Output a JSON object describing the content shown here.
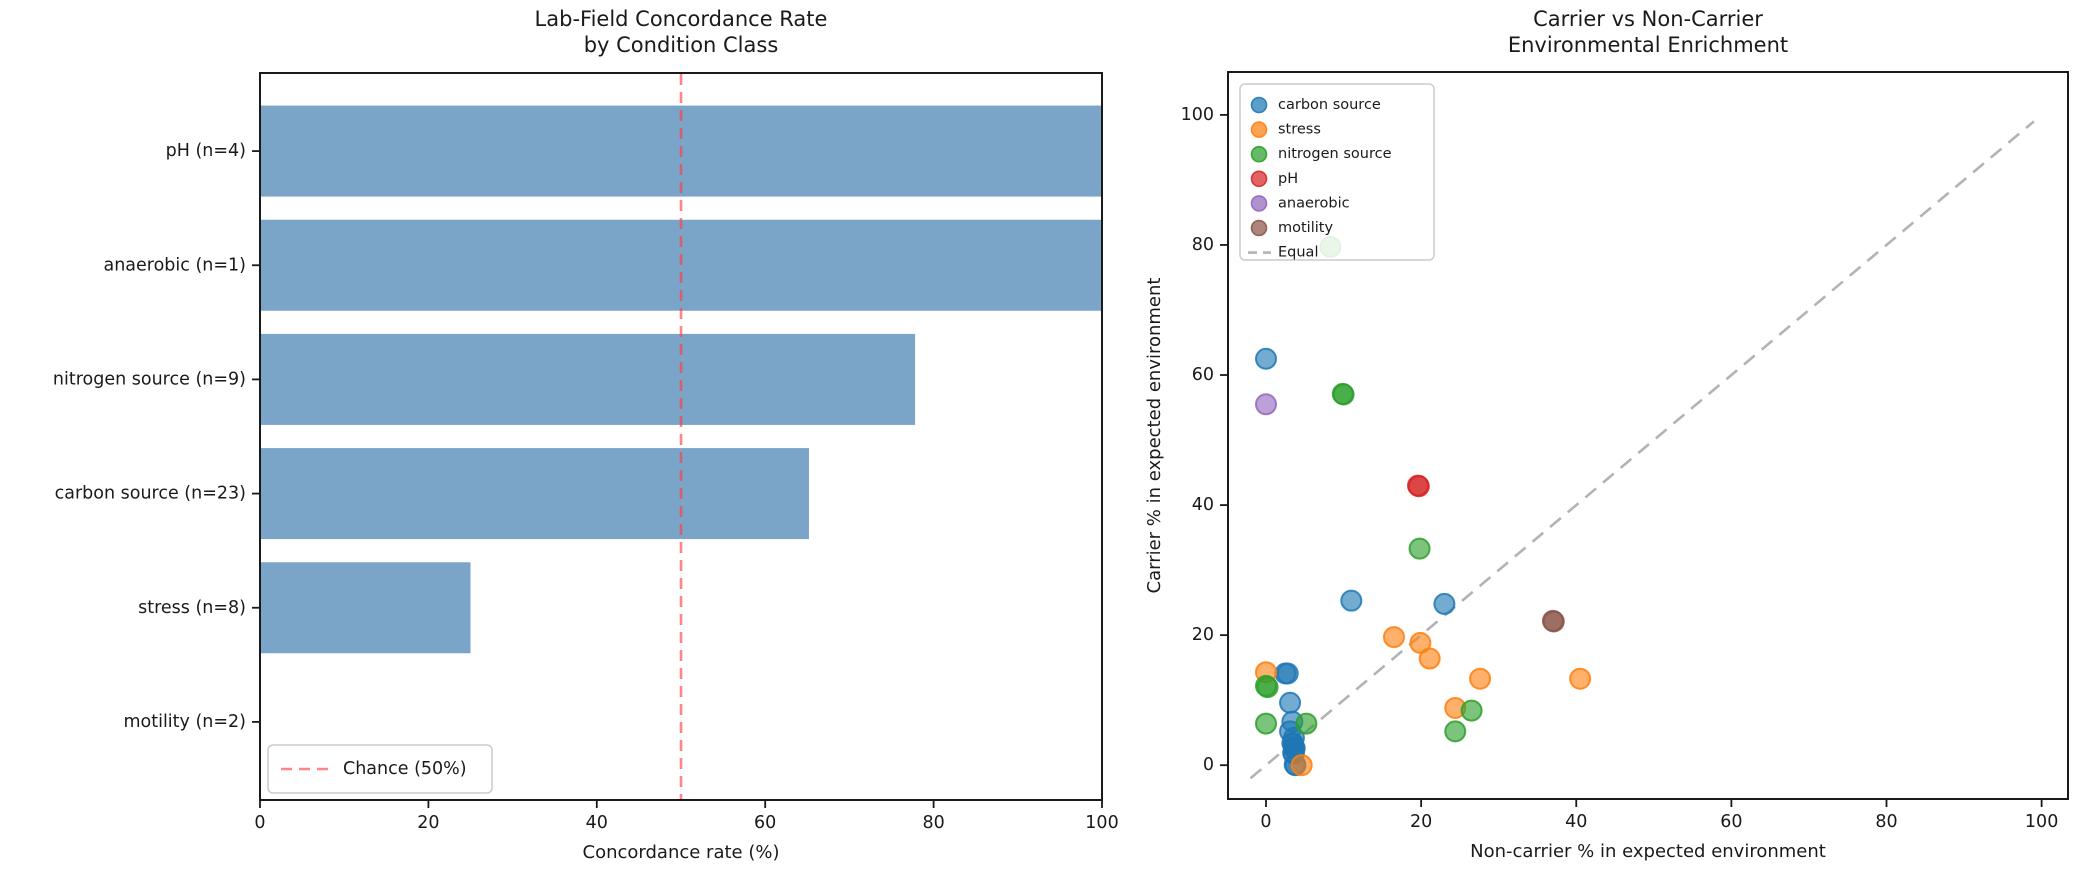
{
  "figure": {
    "background": "#ffffff"
  },
  "chart_data": [
    {
      "type": "bar",
      "orientation": "horizontal",
      "title_lines": [
        "Lab-Field Concordance Rate",
        "by Condition Class"
      ],
      "categories": [
        "pH (n=4)",
        "anaerobic (n=1)",
        "nitrogen source (n=9)",
        "carbon source (n=23)",
        "stress (n=8)",
        "motility (n=2)"
      ],
      "values": [
        100,
        100,
        77.8,
        65.2,
        25,
        0
      ],
      "xlabel": "Concordance rate (%)",
      "x_ticks": [
        0,
        20,
        40,
        60,
        80,
        100
      ],
      "xlim": [
        0,
        100
      ],
      "grid": false,
      "bar_color": "#4682b4",
      "reference_line": {
        "value": 50,
        "label": "Chance (50%)",
        "color": "#ff3b3b",
        "style": "dashed"
      },
      "legend_position": "lower left"
    },
    {
      "type": "scatter",
      "title_lines": [
        "Carrier vs Non-Carrier",
        "Environmental Enrichment"
      ],
      "xlabel": "Non-carrier % in expected environment",
      "ylabel": "Carrier % in expected environment",
      "x_ticks": [
        0,
        20,
        40,
        60,
        80,
        100
      ],
      "y_ticks": [
        0,
        20,
        40,
        60,
        80,
        100
      ],
      "xlim": [
        -4.9,
        103.4
      ],
      "ylim": [
        -5.2,
        106.6
      ],
      "grid": false,
      "legend_position": "upper left",
      "series": [
        {
          "name": "carbon source",
          "color": "#1f77b4",
          "points": [
            [
              0,
              62.5
            ],
            [
              11,
              25.3
            ],
            [
              23,
              24.8
            ],
            [
              2.5,
              14.1
            ],
            [
              2.8,
              14.1
            ],
            [
              3.1,
              9.6
            ],
            [
              3.4,
              6.7
            ],
            [
              3.1,
              5.2
            ],
            [
              3.6,
              4.2
            ],
            [
              3.4,
              3.4
            ],
            [
              3.5,
              3.3
            ],
            [
              3.6,
              2.7
            ],
            [
              3.7,
              2.6
            ],
            [
              3.5,
              1.9
            ],
            [
              3.6,
              1.8
            ],
            [
              3.7,
              0.1
            ],
            [
              3.8,
              0
            ]
          ]
        },
        {
          "name": "stress",
          "color": "#ff7f0e",
          "points": [
            [
              0,
              14.3
            ],
            [
              16.5,
              19.7
            ],
            [
              19.9,
              18.8
            ],
            [
              21.1,
              16.4
            ],
            [
              27.6,
              13.3
            ],
            [
              40.5,
              13.3
            ],
            [
              24.4,
              8.8
            ],
            [
              4.6,
              0
            ]
          ]
        },
        {
          "name": "nitrogen source",
          "color": "#2ca02c",
          "points": [
            [
              8.3,
              79.7
            ],
            [
              9.9,
              57.1
            ],
            [
              10,
              57
            ],
            [
              19.8,
              33.3
            ],
            [
              0,
              12.2
            ],
            [
              0.2,
              12
            ],
            [
              0,
              6.4
            ],
            [
              5.2,
              6.4
            ],
            [
              26.5,
              8.4
            ],
            [
              24.4,
              5.2
            ]
          ]
        },
        {
          "name": "pH",
          "color": "#d62728",
          "points": [
            [
              19.6,
              43
            ],
            [
              19.7,
              42.9
            ]
          ]
        },
        {
          "name": "anaerobic",
          "color": "#9467bd",
          "points": [
            [
              0,
              55.5
            ]
          ]
        },
        {
          "name": "motility",
          "color": "#8c564b",
          "points": [
            [
              37,
              22.2
            ],
            [
              37.1,
              22.1
            ]
          ]
        }
      ],
      "equal_line": {
        "label": "Equal",
        "color": "#b3b3b3",
        "from": [
          -2,
          -2
        ],
        "to": [
          99,
          99
        ]
      }
    }
  ]
}
